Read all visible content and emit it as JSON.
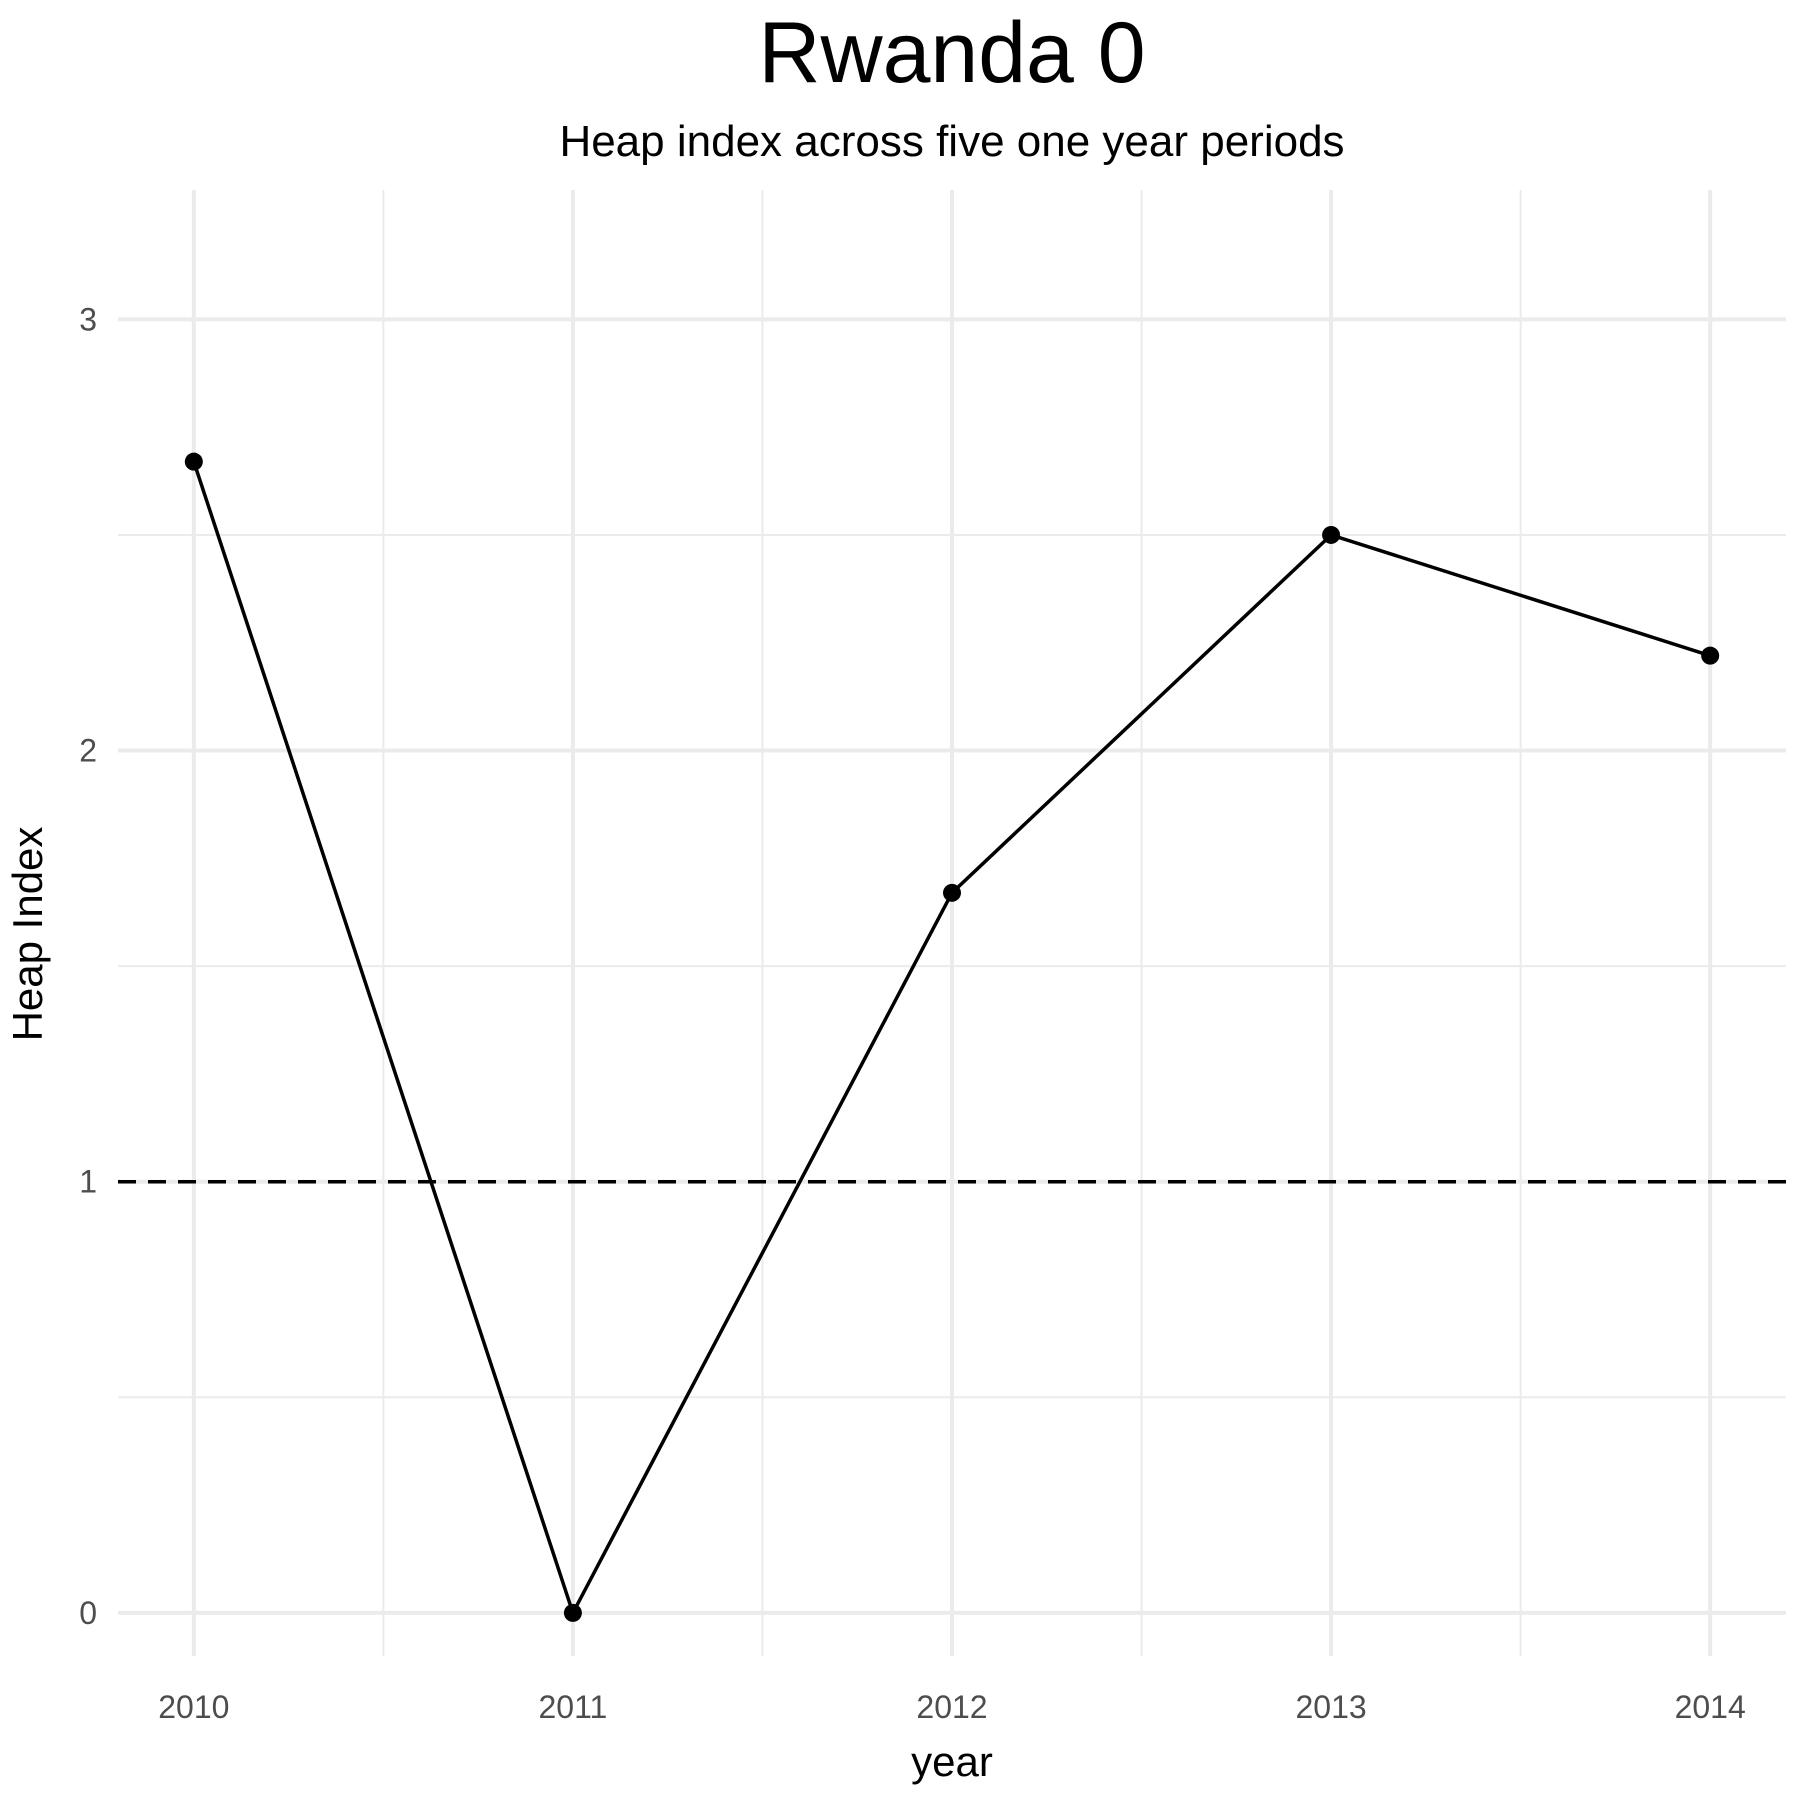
{
  "chart_data": {
    "type": "line",
    "title": "Rwanda 0",
    "subtitle": "Heap index across five one year periods",
    "xlabel": "year",
    "ylabel": "Heap Index",
    "x": [
      2010,
      2011,
      2012,
      2013,
      2014
    ],
    "series": [
      {
        "values": [
          2.67,
          0.0,
          1.67,
          2.5,
          2.22
        ]
      }
    ],
    "xlim": [
      2009.8,
      2014.2
    ],
    "ylim": [
      -0.1,
      3.3
    ],
    "x_ticks": [
      2010,
      2011,
      2012,
      2013,
      2014
    ],
    "y_ticks": [
      0,
      1,
      2,
      3
    ],
    "reference_line": {
      "y": 1,
      "style": "dashed"
    },
    "grid": true,
    "colors": {
      "line": "#000000",
      "grid": "#ebebeb",
      "ticks": "#4d4d4d"
    }
  }
}
